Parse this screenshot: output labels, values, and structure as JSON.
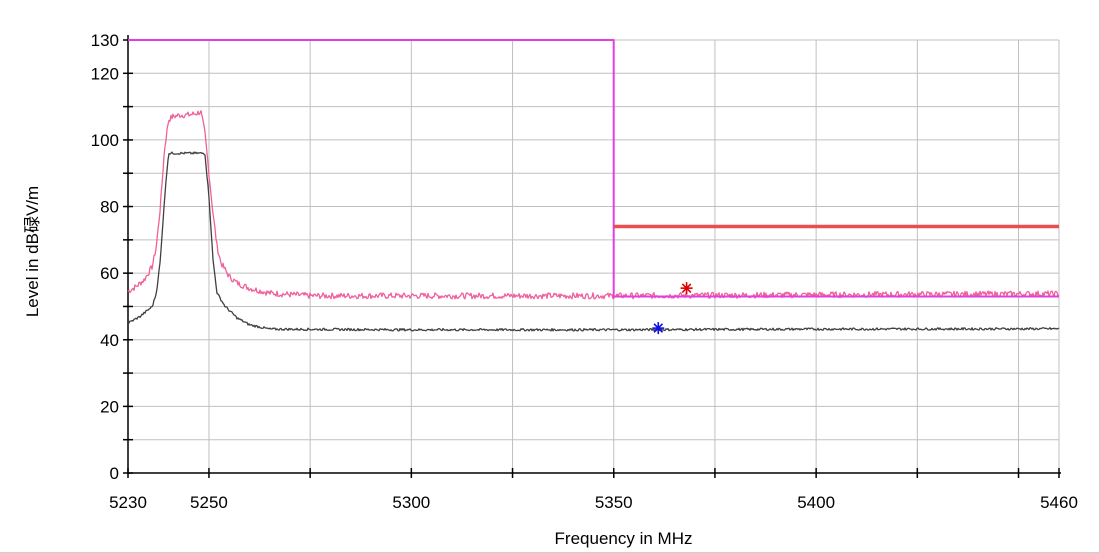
{
  "chart_data": {
    "type": "line",
    "title": "",
    "xlabel": "Frequency in MHz",
    "ylabel": "Level in dB碌V/m",
    "xlim": [
      5230,
      5460
    ],
    "ylim": [
      0,
      130
    ],
    "x_ticks": [
      5230,
      5250,
      5300,
      5350,
      5400,
      5460
    ],
    "x_minor_ticks": [
      5275,
      5325,
      5375,
      5425,
      5450
    ],
    "y_ticks": [
      0,
      20,
      40,
      60,
      80,
      100,
      120,
      130
    ],
    "y_minor_ticks": [
      10,
      30,
      50,
      70,
      90,
      110
    ],
    "x_grid": [
      5250,
      5275,
      5300,
      5325,
      5350,
      5375,
      5400,
      5425,
      5450
    ],
    "y_grid": [
      10,
      20,
      30,
      40,
      50,
      60,
      70,
      80,
      90,
      100,
      110,
      120
    ],
    "grid": true,
    "colors": {
      "peak_trace": "#f0609a",
      "average_trace": "#404040",
      "limit_step": "#e040e0",
      "limit_flat": "#e85050",
      "peak_marker": "#e00000",
      "avg_marker": "#1010e0",
      "grid": "#c0c0c0"
    },
    "series": [
      {
        "role": "peak",
        "points": [
          [
            5230,
            54.5
          ],
          [
            5232,
            56
          ],
          [
            5234,
            58
          ],
          [
            5236,
            62
          ],
          [
            5237,
            68
          ],
          [
            5238,
            80
          ],
          [
            5239,
            97
          ],
          [
            5240,
            106
          ],
          [
            5241,
            107
          ],
          [
            5243,
            107.5
          ],
          [
            5245,
            107.5
          ],
          [
            5247,
            108
          ],
          [
            5248,
            108.5
          ],
          [
            5249,
            102
          ],
          [
            5250,
            90
          ],
          [
            5251,
            78
          ],
          [
            5252,
            68
          ],
          [
            5253,
            63
          ],
          [
            5255,
            59
          ],
          [
            5257,
            57
          ],
          [
            5260,
            55.5
          ],
          [
            5265,
            54
          ],
          [
            5275,
            53.2
          ],
          [
            5300,
            53.2
          ],
          [
            5350,
            53.2
          ],
          [
            5400,
            53.5
          ],
          [
            5460,
            53.8
          ]
        ]
      },
      {
        "role": "average",
        "points": [
          [
            5230,
            45
          ],
          [
            5233,
            47
          ],
          [
            5236,
            50
          ],
          [
            5237,
            54
          ],
          [
            5238,
            64
          ],
          [
            5239,
            82
          ],
          [
            5240,
            96
          ],
          [
            5249,
            96
          ],
          [
            5250,
            83
          ],
          [
            5251,
            64
          ],
          [
            5252,
            54
          ],
          [
            5254,
            50
          ],
          [
            5257,
            46.5
          ],
          [
            5260,
            44.5
          ],
          [
            5265,
            43.2
          ],
          [
            5300,
            43
          ],
          [
            5350,
            43
          ],
          [
            5400,
            43.2
          ],
          [
            5460,
            43.3
          ]
        ]
      },
      {
        "role": "limit-step",
        "points": [
          [
            5230,
            130
          ],
          [
            5350,
            130
          ],
          [
            5350,
            53
          ],
          [
            5460,
            53
          ]
        ]
      },
      {
        "role": "limit-flat",
        "points": [
          [
            5350,
            74
          ],
          [
            5460,
            74
          ]
        ]
      }
    ],
    "markers": [
      {
        "role": "peak-marker",
        "x": 5368,
        "y": 55.5
      },
      {
        "role": "average-marker",
        "x": 5361,
        "y": 43.5
      }
    ]
  }
}
